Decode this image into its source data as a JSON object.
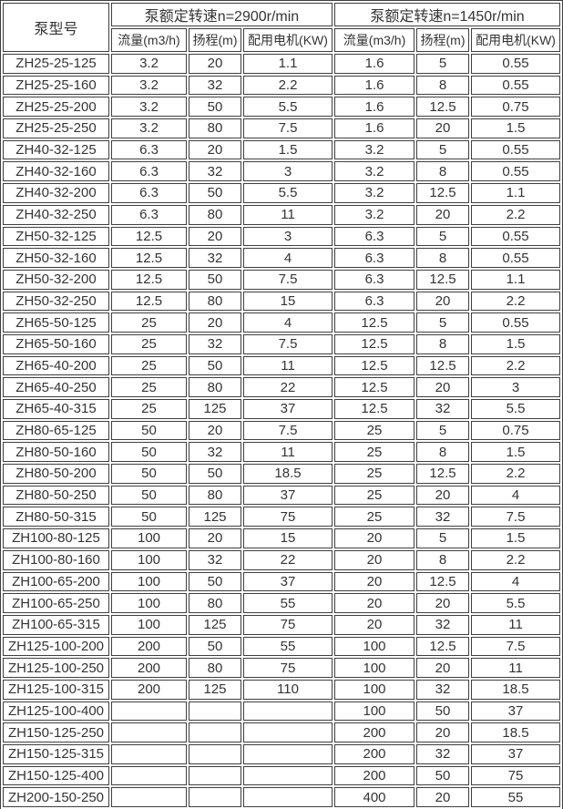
{
  "colors": {
    "border": "#3f3f3f",
    "text": "#343434",
    "background": "#ffffff"
  },
  "table": {
    "model_header": "泵型号",
    "group_headers": [
      "泵额定转速n=2900r/min",
      "泵额定转速n=1450r/min"
    ],
    "sub_headers": [
      "流量(m3/h)",
      "扬程(m)",
      "配用电机(KW)",
      "流量(m3/h)",
      "扬程(m)",
      "配用电机(KW)"
    ],
    "rows": [
      {
        "model": "ZH25-25-125",
        "values": [
          "3.2",
          "20",
          "1.1",
          "1.6",
          "5",
          "0.55"
        ]
      },
      {
        "model": "ZH25-25-160",
        "values": [
          "3.2",
          "32",
          "2.2",
          "1.6",
          "8",
          "0.55"
        ]
      },
      {
        "model": "ZH25-25-200",
        "values": [
          "3.2",
          "50",
          "5.5",
          "1.6",
          "12.5",
          "0.75"
        ]
      },
      {
        "model": "ZH25-25-250",
        "values": [
          "3.2",
          "80",
          "7.5",
          "1.6",
          "20",
          "1.5"
        ]
      },
      {
        "model": "ZH40-32-125",
        "values": [
          "6.3",
          "20",
          "1.5",
          "3.2",
          "5",
          "0.55"
        ]
      },
      {
        "model": "ZH40-32-160",
        "values": [
          "6.3",
          "32",
          "3",
          "3.2",
          "8",
          "0.55"
        ]
      },
      {
        "model": "ZH40-32-200",
        "values": [
          "6.3",
          "50",
          "5.5",
          "3.2",
          "12.5",
          "1.1"
        ]
      },
      {
        "model": "ZH40-32-250",
        "values": [
          "6.3",
          "80",
          "11",
          "3.2",
          "20",
          "2.2"
        ]
      },
      {
        "model": "ZH50-32-125",
        "values": [
          "12.5",
          "20",
          "3",
          "6.3",
          "5",
          "0.55"
        ]
      },
      {
        "model": "ZH50-32-160",
        "values": [
          "12.5",
          "32",
          "4",
          "6.3",
          "8",
          "0.55"
        ]
      },
      {
        "model": "ZH50-32-200",
        "values": [
          "12.5",
          "50",
          "7.5",
          "6.3",
          "12.5",
          "1.1"
        ]
      },
      {
        "model": "ZH50-32-250",
        "values": [
          "12.5",
          "80",
          "15",
          "6.3",
          "20",
          "2.2"
        ]
      },
      {
        "model": "ZH65-50-125",
        "values": [
          "25",
          "20",
          "4",
          "12.5",
          "5",
          "0.55"
        ]
      },
      {
        "model": "ZH65-50-160",
        "values": [
          "25",
          "32",
          "7.5",
          "12.5",
          "8",
          "1.5"
        ]
      },
      {
        "model": "ZH65-40-200",
        "values": [
          "25",
          "50",
          "11",
          "12.5",
          "12.5",
          "2.2"
        ]
      },
      {
        "model": "ZH65-40-250",
        "values": [
          "25",
          "80",
          "22",
          "12.5",
          "20",
          "3"
        ]
      },
      {
        "model": "ZH65-40-315",
        "values": [
          "25",
          "125",
          "37",
          "12.5",
          "32",
          "5.5"
        ]
      },
      {
        "model": "ZH80-65-125",
        "values": [
          "50",
          "20",
          "7.5",
          "25",
          "5",
          "0.75"
        ]
      },
      {
        "model": "ZH80-50-160",
        "values": [
          "50",
          "32",
          "11",
          "25",
          "8",
          "1.5"
        ]
      },
      {
        "model": "ZH80-50-200",
        "values": [
          "50",
          "50",
          "18.5",
          "25",
          "12.5",
          "2.2"
        ]
      },
      {
        "model": "ZH80-50-250",
        "values": [
          "50",
          "80",
          "37",
          "25",
          "20",
          "4"
        ]
      },
      {
        "model": "ZH80-50-315",
        "values": [
          "50",
          "125",
          "75",
          "25",
          "32",
          "7.5"
        ]
      },
      {
        "model": "ZH100-80-125",
        "values": [
          "100",
          "20",
          "15",
          "20",
          "5",
          "1.5"
        ]
      },
      {
        "model": "ZH100-80-160",
        "values": [
          "100",
          "32",
          "22",
          "20",
          "8",
          "2.2"
        ]
      },
      {
        "model": "ZH100-65-200",
        "values": [
          "100",
          "50",
          "37",
          "20",
          "12.5",
          "4"
        ]
      },
      {
        "model": "ZH100-65-250",
        "values": [
          "100",
          "80",
          "55",
          "20",
          "20",
          "5.5"
        ]
      },
      {
        "model": "ZH100-65-315",
        "values": [
          "100",
          "125",
          "75",
          "20",
          "32",
          "11"
        ]
      },
      {
        "model": "ZH125-100-200",
        "values": [
          "200",
          "50",
          "55",
          "100",
          "12.5",
          "7.5"
        ]
      },
      {
        "model": "ZH125-100-250",
        "values": [
          "200",
          "80",
          "75",
          "100",
          "20",
          "11"
        ]
      },
      {
        "model": "ZH125-100-315",
        "values": [
          "200",
          "125",
          "110",
          "100",
          "32",
          "18.5"
        ]
      },
      {
        "model": "ZH125-100-400",
        "values": [
          "",
          "",
          "",
          "100",
          "50",
          "37"
        ]
      },
      {
        "model": "ZH150-125-250",
        "values": [
          "",
          "",
          "",
          "200",
          "20",
          "18.5"
        ]
      },
      {
        "model": "ZH150-125-315",
        "values": [
          "",
          "",
          "",
          "200",
          "32",
          "37"
        ]
      },
      {
        "model": "ZH150-125-400",
        "values": [
          "",
          "",
          "",
          "200",
          "50",
          "75"
        ]
      },
      {
        "model": "ZH200-150-250",
        "values": [
          "",
          "",
          "",
          "400",
          "20",
          "55"
        ]
      }
    ]
  }
}
